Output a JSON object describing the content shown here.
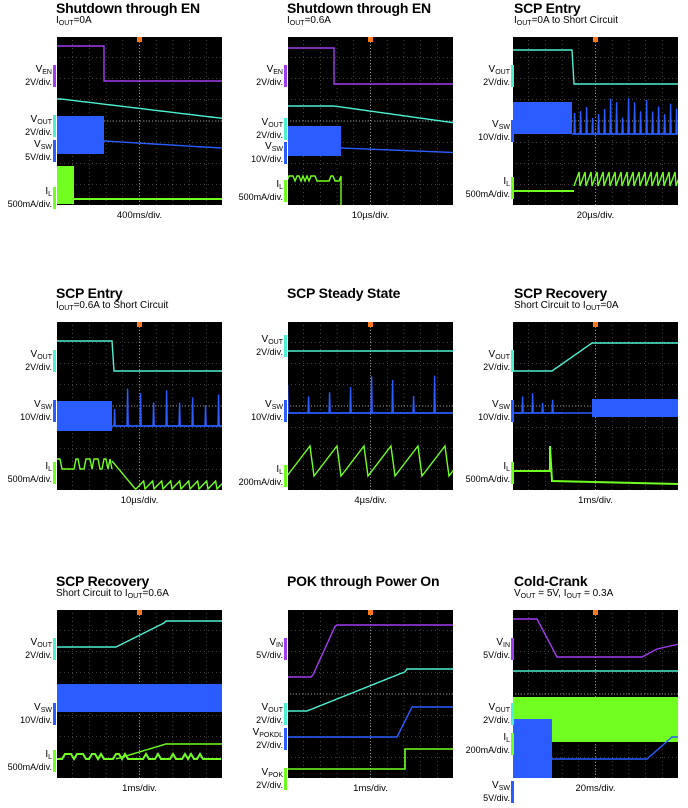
{
  "colors": {
    "background": "#000000",
    "frame": "#ffffff",
    "grid": "#808080",
    "purple": "#a13cf0",
    "cyan": "#4df0d0",
    "blue": "#2a5cff",
    "green": "#70ff20",
    "trigger": "#ff7a1a"
  },
  "chart_data": [
    {
      "type": "line",
      "title": "Shutdown through EN",
      "subtitle": "I<sub>OUT</sub>=0A",
      "xlabel": "400ms/div.",
      "channels": [
        {
          "label": "V<sub>EN</sub>",
          "scale": "2V/div."
        },
        {
          "label": "V<sub>OUT</sub>",
          "scale": "2V/div."
        },
        {
          "label": "V<sub>SW</sub>",
          "scale": "5V/div."
        },
        {
          "label": "I<sub>L</sub>",
          "scale": "500mA/div."
        }
      ]
    },
    {
      "type": "line",
      "title": "Shutdown through EN",
      "subtitle": "I<sub>OUT</sub>=0.6A",
      "xlabel": "10µs/div.",
      "channels": [
        {
          "label": "V<sub>EN</sub>",
          "scale": "2V/div."
        },
        {
          "label": "V<sub>OUT</sub>",
          "scale": "2V/div."
        },
        {
          "label": "V<sub>SW</sub>",
          "scale": "10V/div."
        },
        {
          "label": "I<sub>L</sub>",
          "scale": "500mA/div."
        }
      ]
    },
    {
      "type": "line",
      "title": "SCP Entry",
      "subtitle": "I<sub>OUT</sub>=0A to Short Circuit",
      "xlabel": "20µs/div.",
      "channels": [
        {
          "label": "V<sub>OUT</sub>",
          "scale": "2V/div."
        },
        {
          "label": "V<sub>SW</sub>",
          "scale": "10V/div."
        },
        {
          "label": "I<sub>L</sub>",
          "scale": "500mA/div."
        }
      ]
    },
    {
      "type": "line",
      "title": "SCP Entry",
      "subtitle": "I<sub>OUT</sub>=0.6A to Short Circuit",
      "xlabel": "10µs/div.",
      "channels": [
        {
          "label": "V<sub>OUT</sub>",
          "scale": "2V/div."
        },
        {
          "label": "V<sub>SW</sub>",
          "scale": "10V/div."
        },
        {
          "label": "I<sub>L</sub>",
          "scale": "500mA/div."
        }
      ]
    },
    {
      "type": "line",
      "title": "SCP Steady State",
      "subtitle": "",
      "xlabel": "4µs/div.",
      "channels": [
        {
          "label": "V<sub>OUT</sub>",
          "scale": "2V/div."
        },
        {
          "label": "V<sub>SW</sub>",
          "scale": "10V/div."
        },
        {
          "label": "I<sub>L</sub>",
          "scale": "200mA/div."
        }
      ]
    },
    {
      "type": "line",
      "title": "SCP Recovery",
      "subtitle": "Short Circuit to I<sub>OUT</sub>=0A",
      "xlabel": "1ms/div.",
      "channels": [
        {
          "label": "V<sub>OUT</sub>",
          "scale": "2V/div."
        },
        {
          "label": "V<sub>SW</sub>",
          "scale": "10V/div."
        },
        {
          "label": "I<sub>L</sub>",
          "scale": "500mA/div."
        }
      ]
    },
    {
      "type": "line",
      "title": "SCP Recovery",
      "subtitle": "Short Circuit to I<sub>OUT</sub>=0.6A",
      "xlabel": "1ms/div.",
      "channels": [
        {
          "label": "V<sub>OUT</sub>",
          "scale": "2V/div."
        },
        {
          "label": "V<sub>SW</sub>",
          "scale": "10V/div."
        },
        {
          "label": "I<sub>L</sub>",
          "scale": "500mA/div."
        }
      ]
    },
    {
      "type": "line",
      "title": "POK through Power On",
      "subtitle": "",
      "xlabel": "1ms/div.",
      "channels": [
        {
          "label": "V<sub>IN</sub>",
          "scale": "5V/div."
        },
        {
          "label": "V<sub>OUT</sub>",
          "scale": "2V/div."
        },
        {
          "label": "V<sub>POKDL</sub>",
          "scale": "2V/div."
        },
        {
          "label": "V<sub>POK</sub>",
          "scale": "2V/div."
        }
      ]
    },
    {
      "type": "line",
      "title": "Cold-Crank",
      "subtitle": "V<sub>OUT</sub> = 5V, I<sub>OUT</sub> = 0.3A",
      "xlabel": "20ms/div.",
      "channels": [
        {
          "label": "V<sub>IN</sub>",
          "scale": "5V/div."
        },
        {
          "label": "V<sub>OUT</sub>",
          "scale": "2V/div."
        },
        {
          "label": "I<sub>L</sub>",
          "scale": "200mA/div."
        },
        {
          "label": "V<sub>SW</sub>",
          "scale": "5V/div."
        }
      ]
    }
  ]
}
